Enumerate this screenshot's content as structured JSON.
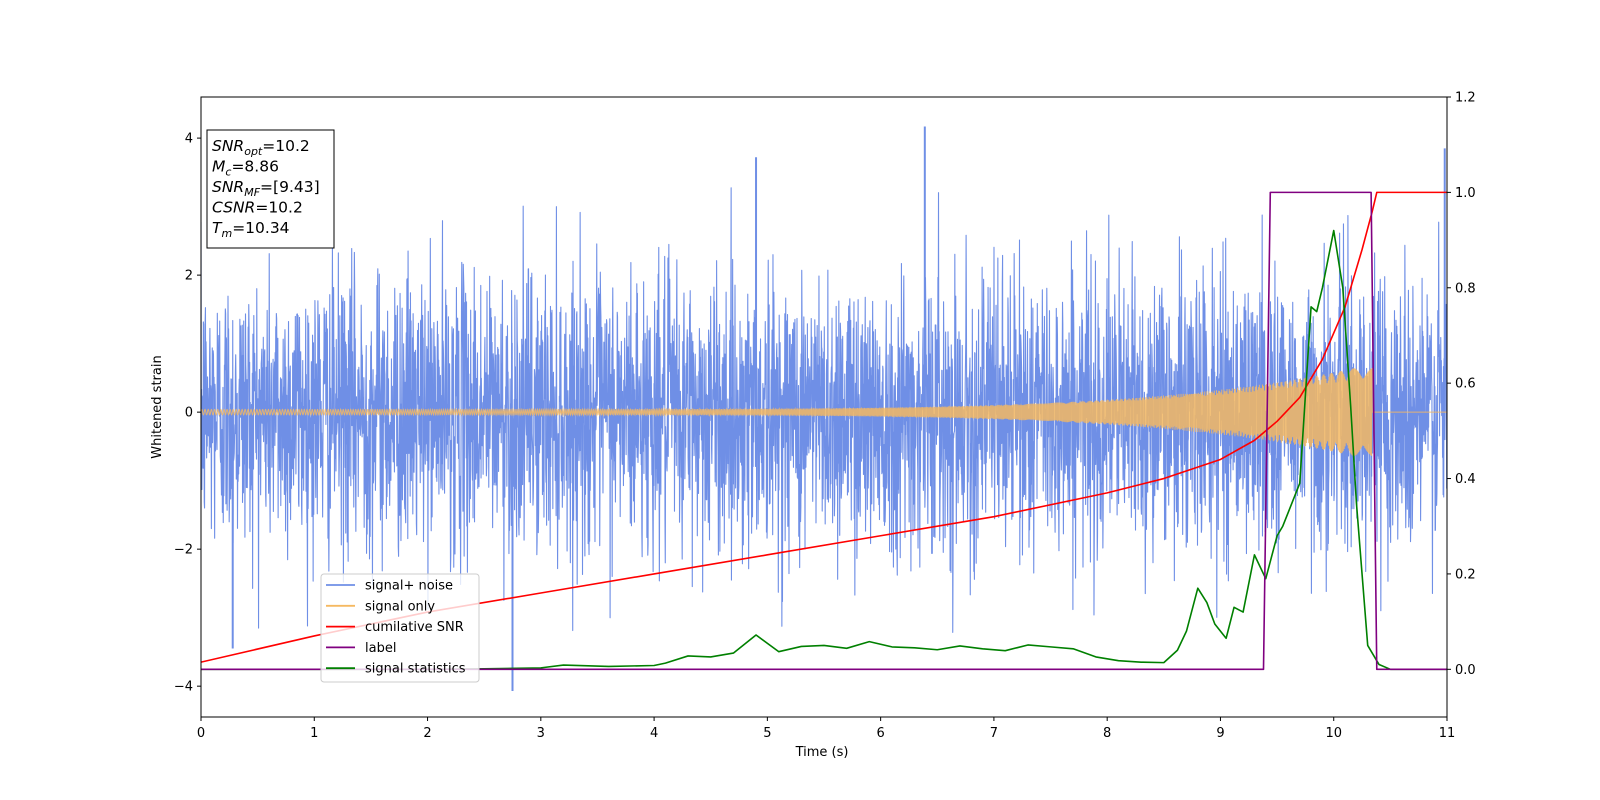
{
  "chart_data": {
    "type": "line",
    "x_axis": {
      "label": "Time (s)",
      "range": [
        0,
        11
      ],
      "ticks": [
        0,
        1,
        2,
        3,
        4,
        5,
        6,
        7,
        8,
        9,
        10,
        11
      ]
    },
    "y_axis_left": {
      "label": "Whitened strain",
      "range": [
        -4.45,
        4.6
      ],
      "ticks": [
        4,
        2,
        0,
        -2,
        -4
      ],
      "tick_labels": [
        "4",
        "2",
        "0",
        "−2",
        "−4"
      ]
    },
    "y_axis_right": {
      "label": "",
      "range": [
        -0.1,
        1.2
      ],
      "ticks": [
        1.2,
        1.0,
        0.8,
        0.6,
        0.4,
        0.2,
        0.0
      ],
      "tick_labels": [
        "1.2",
        "1.0",
        "0.8",
        "0.6",
        "0.4",
        "0.2",
        "0.0"
      ]
    },
    "info_box": {
      "lines": [
        {
          "symbol": "SNR",
          "subscript": "opt",
          "value": "=10.2"
        },
        {
          "symbol": "M",
          "subscript": "c",
          "value": "=8.86"
        },
        {
          "symbol": "SNR",
          "subscript": "MF",
          "value": "=[9.43]"
        },
        {
          "symbol": "CSNR",
          "subscript": "",
          "value": "=10.2"
        },
        {
          "symbol": "T",
          "subscript": "m",
          "value": "=10.34"
        }
      ]
    },
    "series": [
      {
        "name": "signal+ noise",
        "axis": "left",
        "color": "#6f8fe6",
        "kind": "noise",
        "noise_sigma": 1.0,
        "peak_values": [
          {
            "x": 6.39,
            "y": 4.17
          },
          {
            "x": 4.9,
            "y": 3.72
          },
          {
            "x": 2.75,
            "y": -4.07
          },
          {
            "x": 0.28,
            "y": -3.45
          },
          {
            "x": 10.98,
            "y": 3.85
          }
        ]
      },
      {
        "name": "signal only",
        "axis": "left",
        "color": "#f5b961",
        "kind": "chirp",
        "amplitude_start": 0.04,
        "amplitude_end": 0.7,
        "end_time": 10.34
      },
      {
        "name": "cumilative SNR",
        "axis": "right",
        "color": "#ff0000",
        "x": [
          0,
          1,
          2,
          3,
          4,
          5,
          6,
          7,
          8,
          8.5,
          9,
          9.3,
          9.5,
          9.7,
          9.9,
          10.1,
          10.25,
          10.34,
          10.38,
          11
        ],
        "y": [
          0.015,
          0.07,
          0.12,
          0.16,
          0.2,
          0.24,
          0.28,
          0.32,
          0.37,
          0.4,
          0.44,
          0.48,
          0.52,
          0.57,
          0.65,
          0.76,
          0.88,
          0.96,
          1.0,
          1.0
        ]
      },
      {
        "name": "label",
        "axis": "right",
        "color": "#800080",
        "x": [
          0,
          9.38,
          9.44,
          10.33,
          10.38,
          11
        ],
        "y": [
          0,
          0,
          1,
          1,
          0,
          0
        ]
      },
      {
        "name": "signal statistics",
        "axis": "right",
        "color": "#008000",
        "x": [
          0,
          1,
          2,
          2.5,
          3,
          3.2,
          3.6,
          4,
          4.1,
          4.3,
          4.5,
          4.7,
          4.9,
          5.1,
          5.3,
          5.5,
          5.7,
          5.9,
          6.1,
          6.3,
          6.5,
          6.7,
          6.9,
          7.1,
          7.3,
          7.5,
          7.7,
          7.9,
          8.1,
          8.3,
          8.5,
          8.62,
          8.7,
          8.8,
          8.88,
          8.95,
          9.05,
          9.12,
          9.2,
          9.3,
          9.4,
          9.5,
          9.55,
          9.6,
          9.7,
          9.8,
          9.85,
          9.9,
          10.0,
          10.08,
          10.15,
          10.2,
          10.3,
          10.4,
          10.5,
          11
        ],
        "y": [
          0,
          0,
          0,
          0.001,
          0.003,
          0.009,
          0.006,
          0.008,
          0.013,
          0.028,
          0.026,
          0.034,
          0.072,
          0.037,
          0.048,
          0.05,
          0.044,
          0.058,
          0.047,
          0.045,
          0.041,
          0.049,
          0.043,
          0.039,
          0.051,
          0.047,
          0.043,
          0.026,
          0.018,
          0.015,
          0.014,
          0.04,
          0.08,
          0.17,
          0.14,
          0.095,
          0.065,
          0.13,
          0.12,
          0.24,
          0.19,
          0.28,
          0.3,
          0.33,
          0.39,
          0.76,
          0.75,
          0.8,
          0.92,
          0.8,
          0.55,
          0.35,
          0.05,
          0.01,
          0,
          0
        ]
      }
    ],
    "legend": {
      "position": "lower-left",
      "entries": [
        "signal+ noise",
        "signal only",
        "cumilative SNR",
        "label",
        "signal statistics"
      ]
    },
    "grid": false
  }
}
